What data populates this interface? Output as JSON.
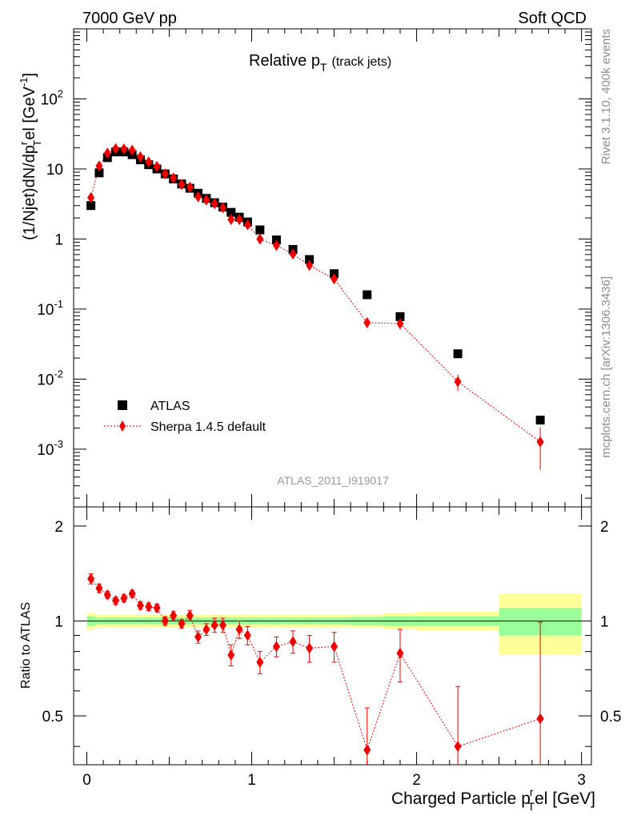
{
  "header": {
    "left": "7000 GeV pp",
    "right": "Soft QCD"
  },
  "side_labels": {
    "rivet": "Rivet 3.1.10,  400k events",
    "mcplots": "mcplots.cern.ch [arXiv:1306.3436]"
  },
  "colors": {
    "atlas": "#000000",
    "sherpa": "#ee0000",
    "band_inner": "#99ff99",
    "band_outer": "#ffff99"
  },
  "chart_data": {
    "type": "scatter",
    "title_main": "Relative p",
    "title_sub": "T",
    "title_suffix": "(track jets)",
    "analysis_label": "ATLAS_2011_I919017",
    "xlabel_main": "Charged Particle p",
    "xlabel_sup": "r",
    "xlabel_sub": "T",
    "xlabel_suffix": "el [GeV]",
    "ylabel_main": "(1/Njet)dN/dp",
    "ylabel_sup": "r",
    "ylabel_sub": "T",
    "ylabel_mid": "el [GeV",
    "ylabel_exp": "-1",
    "ylabel_end": "]",
    "ratio_ylabel": "Ratio to ATLAS",
    "xlim": [
      -0.08,
      3.06
    ],
    "ylim": [
      0.00015,
      1000
    ],
    "ratio_ylim": [
      0.35,
      2.3
    ],
    "x_ticks": [
      "0",
      "1",
      "2",
      "3"
    ],
    "y_ticks": [
      {
        "base": "10",
        "exp": "-3"
      },
      {
        "base": "10",
        "exp": "-2"
      },
      {
        "base": "10",
        "exp": "-1"
      },
      {
        "base": "1",
        "exp": ""
      },
      {
        "base": "10",
        "exp": ""
      },
      {
        "base": "10",
        "exp": "2"
      }
    ],
    "ratio_ticks": [
      "0.5",
      "1",
      "2"
    ],
    "legend": [
      "ATLAS",
      "Sherpa 1.4.5 default"
    ],
    "series": [
      {
        "name": "ATLAS",
        "x": [
          0.025,
          0.075,
          0.125,
          0.175,
          0.225,
          0.275,
          0.325,
          0.375,
          0.425,
          0.475,
          0.525,
          0.575,
          0.625,
          0.675,
          0.725,
          0.775,
          0.825,
          0.875,
          0.925,
          0.975,
          1.05,
          1.15,
          1.25,
          1.35,
          1.5,
          1.7,
          1.9,
          2.25,
          2.75
        ],
        "y": [
          3.0,
          8.8,
          14.5,
          17.5,
          17.5,
          16.0,
          13.5,
          11.5,
          10.0,
          8.5,
          7.2,
          6.1,
          5.3,
          4.5,
          3.8,
          3.3,
          2.85,
          2.4,
          2.05,
          1.75,
          1.35,
          0.97,
          0.71,
          0.51,
          0.32,
          0.16,
          0.078,
          0.023,
          0.0026
        ]
      },
      {
        "name": "Sherpa 1.4.5 default",
        "x": [
          0.025,
          0.075,
          0.125,
          0.175,
          0.225,
          0.275,
          0.325,
          0.375,
          0.425,
          0.475,
          0.525,
          0.575,
          0.625,
          0.675,
          0.725,
          0.775,
          0.825,
          0.875,
          0.925,
          0.975,
          1.05,
          1.15,
          1.25,
          1.35,
          1.5,
          1.7,
          1.9,
          2.25,
          2.75
        ],
        "y": [
          3.9,
          11.0,
          16.8,
          19.5,
          19.3,
          18.5,
          14.9,
          12.6,
          10.8,
          8.5,
          7.4,
          6.0,
          5.5,
          4.0,
          3.6,
          3.2,
          2.8,
          1.9,
          1.9,
          1.6,
          1.0,
          0.81,
          0.61,
          0.42,
          0.27,
          0.064,
          0.062,
          0.0092,
          0.00127
        ]
      }
    ],
    "ratio": [
      1.36,
      1.27,
      1.21,
      1.16,
      1.18,
      1.22,
      1.12,
      1.11,
      1.1,
      1.0,
      1.04,
      0.98,
      1.04,
      0.89,
      0.94,
      0.97,
      0.97,
      0.78,
      0.94,
      0.9,
      0.74,
      0.83,
      0.86,
      0.82,
      0.83,
      0.39,
      0.79,
      0.4,
      0.49
    ],
    "ratio_err": [
      0.05,
      0.04,
      0.03,
      0.03,
      0.03,
      0.03,
      0.03,
      0.03,
      0.03,
      0.03,
      0.03,
      0.03,
      0.04,
      0.04,
      0.04,
      0.05,
      0.05,
      0.06,
      0.06,
      0.06,
      0.06,
      0.06,
      0.07,
      0.08,
      0.09,
      0.14,
      0.15,
      0.22,
      0.5
    ],
    "band_edges": [
      0.0,
      0.05,
      0.1,
      0.15,
      0.2,
      0.25,
      0.3,
      0.35,
      0.4,
      0.45,
      0.5,
      0.55,
      0.6,
      0.65,
      0.7,
      0.75,
      0.8,
      0.85,
      0.9,
      0.95,
      1.0,
      1.1,
      1.2,
      1.3,
      1.4,
      1.6,
      1.8,
      2.0,
      2.5,
      3.0
    ],
    "band_inner": [
      0.035,
      0.025,
      0.025,
      0.025,
      0.025,
      0.025,
      0.025,
      0.025,
      0.025,
      0.025,
      0.025,
      0.025,
      0.025,
      0.025,
      0.025,
      0.025,
      0.025,
      0.025,
      0.025,
      0.025,
      0.025,
      0.025,
      0.025,
      0.025,
      0.025,
      0.03,
      0.035,
      0.035,
      0.1
    ],
    "band_outer": [
      0.06,
      0.045,
      0.045,
      0.045,
      0.045,
      0.045,
      0.045,
      0.045,
      0.045,
      0.045,
      0.045,
      0.045,
      0.045,
      0.045,
      0.045,
      0.045,
      0.045,
      0.045,
      0.045,
      0.045,
      0.045,
      0.045,
      0.045,
      0.045,
      0.045,
      0.05,
      0.06,
      0.07,
      0.22
    ]
  }
}
